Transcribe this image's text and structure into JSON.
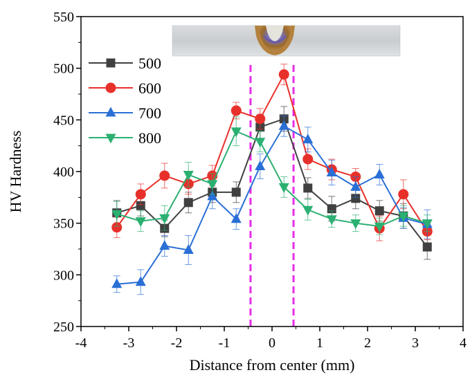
{
  "chart_data": {
    "type": "line",
    "title": "",
    "xlabel": "Distance from center (mm)",
    "ylabel": "HV Hardness",
    "xlim": [
      -4,
      4
    ],
    "ylim": [
      250,
      550
    ],
    "xticks": [
      -4,
      -3,
      -2,
      -1,
      0,
      1,
      2,
      3,
      4
    ],
    "yticks": [
      250,
      300,
      350,
      400,
      450,
      500,
      550
    ],
    "x": [
      -3.25,
      -2.75,
      -2.25,
      -1.75,
      -1.25,
      -0.75,
      -0.25,
      0.25,
      0.75,
      1.25,
      1.75,
      2.25,
      2.75,
      3.25
    ],
    "series": [
      {
        "name": "500",
        "color": "#404040",
        "marker": "square",
        "values": [
          360,
          367,
          345,
          370,
          380,
          380,
          443,
          451,
          384,
          364,
          374,
          362,
          357,
          327
        ],
        "errors": [
          12,
          10,
          8,
          10,
          10,
          10,
          12,
          12,
          10,
          12,
          10,
          10,
          12,
          12
        ]
      },
      {
        "name": "600",
        "color": "#e8302a",
        "marker": "circle",
        "values": [
          346,
          378,
          396,
          388,
          396,
          459,
          451,
          494,
          412,
          402,
          395,
          345,
          378,
          342
        ],
        "errors": [
          10,
          10,
          12,
          10,
          10,
          8,
          10,
          10,
          10,
          10,
          8,
          12,
          14,
          8
        ]
      },
      {
        "name": "700",
        "color": "#2a6fd6",
        "marker": "triangle-up",
        "values": [
          291,
          293,
          328,
          324,
          376,
          354,
          405,
          444,
          431,
          399,
          385,
          397,
          355,
          349
        ],
        "errors": [
          8,
          12,
          10,
          14,
          12,
          10,
          12,
          10,
          12,
          12,
          10,
          10,
          10,
          14
        ]
      },
      {
        "name": "800",
        "color": "#2bb071",
        "marker": "triangle-down",
        "values": [
          359,
          352,
          355,
          397,
          388,
          439,
          429,
          385,
          363,
          354,
          350,
          347,
          357,
          350
        ],
        "errors": [
          12,
          10,
          12,
          12,
          10,
          14,
          10,
          10,
          10,
          8,
          8,
          8,
          10,
          8
        ]
      }
    ],
    "annotations": {
      "vertical_dashed_lines_x": [
        -0.45,
        0.45
      ],
      "vertical_line_color": "#e62de6",
      "inset_image": "weld cross-section photo"
    },
    "legend_position": "top-left",
    "grid": false
  }
}
